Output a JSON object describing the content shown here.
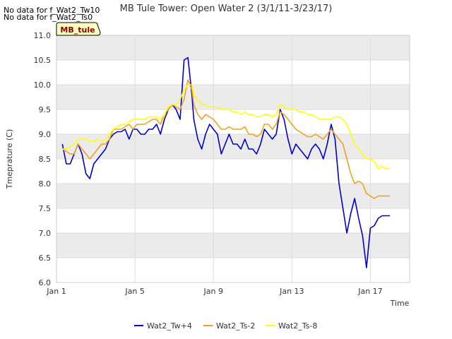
{
  "notes": [
    "No data for f_Wat2_Tw10",
    "No data for f_Wat2_Ts0"
  ],
  "chart_data": {
    "type": "line",
    "title": "MB Tule Tower: Open Water 2 (3/1/11-3/23/17)",
    "xlabel": "Time",
    "ylabel": "Tmeprature (C)",
    "xlim": [
      1,
      19
    ],
    "ylim": [
      6.0,
      11.0
    ],
    "xticks": [
      {
        "value": 1,
        "label": "Jan 1"
      },
      {
        "value": 5,
        "label": "Jan 5"
      },
      {
        "value": 9,
        "label": "Jan 9"
      },
      {
        "value": 13,
        "label": "Jan 13"
      },
      {
        "value": 17,
        "label": "Jan 17"
      }
    ],
    "yticks": [
      6.0,
      6.5,
      7.0,
      7.5,
      8.0,
      8.5,
      9.0,
      9.5,
      10.0,
      10.5,
      11.0
    ],
    "annotation": "MB_tule",
    "colors": {
      "band": "#ebebeb",
      "tag_bg": "#ffffc0",
      "tag_text": "#8b0000"
    },
    "series": [
      {
        "name": "Wat2_Tw+4",
        "color": "#0000cc",
        "x": [
          1.3,
          1.5,
          1.7,
          1.9,
          2.1,
          2.3,
          2.5,
          2.7,
          2.9,
          3.1,
          3.3,
          3.5,
          3.7,
          3.9,
          4.1,
          4.3,
          4.5,
          4.7,
          4.9,
          5.1,
          5.3,
          5.5,
          5.7,
          5.9,
          6.1,
          6.3,
          6.5,
          6.7,
          6.9,
          7.1,
          7.3,
          7.5,
          7.7,
          7.9,
          8.0,
          8.2,
          8.4,
          8.6,
          8.8,
          9.0,
          9.2,
          9.4,
          9.6,
          9.8,
          10.0,
          10.2,
          10.4,
          10.6,
          10.8,
          11.0,
          11.2,
          11.4,
          11.6,
          11.8,
          12.0,
          12.2,
          12.4,
          12.6,
          12.8,
          13.0,
          13.2,
          13.4,
          13.6,
          13.8,
          14.0,
          14.2,
          14.4,
          14.6,
          14.8,
          15.0,
          15.2,
          15.4,
          15.6,
          15.8,
          16.0,
          16.2,
          16.4,
          16.6,
          16.8,
          17.0,
          17.2,
          17.4,
          17.6,
          17.8,
          18.0
        ],
        "y": [
          8.8,
          8.4,
          8.4,
          8.6,
          8.8,
          8.6,
          8.2,
          8.1,
          8.4,
          8.5,
          8.6,
          8.7,
          8.9,
          9.0,
          9.05,
          9.05,
          9.1,
          8.9,
          9.1,
          9.1,
          9.0,
          9.0,
          9.1,
          9.1,
          9.2,
          9.0,
          9.3,
          9.5,
          9.6,
          9.5,
          9.3,
          10.5,
          10.55,
          9.8,
          9.3,
          8.9,
          8.7,
          9.0,
          9.2,
          9.1,
          9.0,
          8.6,
          8.8,
          9.0,
          8.8,
          8.8,
          8.7,
          8.9,
          8.7,
          8.7,
          8.6,
          8.8,
          9.1,
          9.0,
          8.9,
          9.0,
          9.5,
          9.3,
          8.9,
          8.6,
          8.8,
          8.7,
          8.6,
          8.5,
          8.7,
          8.8,
          8.7,
          8.5,
          8.8,
          9.2,
          8.9,
          8.0,
          7.5,
          7.0,
          7.4,
          7.7,
          7.3,
          6.95,
          6.3,
          7.1,
          7.15,
          7.3,
          7.35,
          7.35,
          7.35
        ]
      },
      {
        "name": "Wat2_Ts-2",
        "color": "#f0a020",
        "x": [
          1.3,
          1.5,
          1.7,
          1.9,
          2.1,
          2.3,
          2.5,
          2.7,
          2.9,
          3.1,
          3.3,
          3.5,
          3.7,
          3.9,
          4.1,
          4.3,
          4.5,
          4.7,
          4.9,
          5.1,
          5.3,
          5.5,
          5.7,
          5.9,
          6.1,
          6.3,
          6.5,
          6.7,
          6.9,
          7.1,
          7.3,
          7.5,
          7.7,
          7.9,
          8.0,
          8.2,
          8.4,
          8.6,
          8.8,
          9.0,
          9.2,
          9.4,
          9.6,
          9.8,
          10.0,
          10.2,
          10.4,
          10.6,
          10.8,
          11.0,
          11.2,
          11.4,
          11.6,
          11.8,
          12.0,
          12.2,
          12.4,
          12.6,
          12.8,
          13.0,
          13.2,
          13.4,
          13.6,
          13.8,
          14.0,
          14.2,
          14.4,
          14.6,
          14.8,
          15.0,
          15.2,
          15.4,
          15.6,
          15.8,
          16.0,
          16.2,
          16.4,
          16.6,
          16.8,
          17.0,
          17.2,
          17.4,
          17.6,
          17.8,
          18.0
        ],
        "y": [
          8.7,
          8.65,
          8.6,
          8.6,
          8.8,
          8.7,
          8.6,
          8.5,
          8.6,
          8.7,
          8.8,
          8.8,
          8.9,
          9.1,
          9.1,
          9.1,
          9.15,
          9.2,
          9.1,
          9.2,
          9.2,
          9.2,
          9.25,
          9.3,
          9.3,
          9.2,
          9.4,
          9.5,
          9.6,
          9.55,
          9.5,
          9.7,
          10.1,
          9.9,
          9.6,
          9.4,
          9.3,
          9.4,
          9.35,
          9.3,
          9.2,
          9.1,
          9.1,
          9.15,
          9.1,
          9.1,
          9.1,
          9.15,
          9.0,
          9.0,
          8.95,
          9.0,
          9.2,
          9.2,
          9.1,
          9.2,
          9.45,
          9.4,
          9.3,
          9.2,
          9.1,
          9.05,
          9.0,
          8.95,
          8.95,
          9.0,
          8.95,
          8.9,
          9.0,
          9.1,
          9.0,
          8.9,
          8.8,
          8.5,
          8.2,
          8.0,
          8.05,
          8.0,
          7.8,
          7.75,
          7.7,
          7.75,
          7.75,
          7.75,
          7.75
        ]
      },
      {
        "name": "Wat2_Ts-8",
        "color": "#ffff00",
        "x": [
          1.3,
          1.5,
          1.7,
          1.9,
          2.1,
          2.3,
          2.5,
          2.7,
          2.9,
          3.1,
          3.3,
          3.5,
          3.7,
          3.9,
          4.1,
          4.3,
          4.5,
          4.7,
          4.9,
          5.1,
          5.3,
          5.5,
          5.7,
          5.9,
          6.1,
          6.3,
          6.5,
          6.7,
          6.9,
          7.1,
          7.3,
          7.5,
          7.7,
          7.9,
          8.0,
          8.2,
          8.4,
          8.6,
          8.8,
          9.0,
          9.2,
          9.4,
          9.6,
          9.8,
          10.0,
          10.2,
          10.4,
          10.6,
          10.8,
          11.0,
          11.2,
          11.4,
          11.6,
          11.8,
          12.0,
          12.2,
          12.4,
          12.6,
          12.8,
          13.0,
          13.2,
          13.4,
          13.6,
          13.8,
          14.0,
          14.2,
          14.4,
          14.6,
          14.8,
          15.0,
          15.2,
          15.4,
          15.6,
          15.8,
          16.0,
          16.2,
          16.4,
          16.6,
          16.8,
          17.0,
          17.2,
          17.4,
          17.6,
          17.8,
          18.0
        ],
        "y": [
          8.7,
          8.7,
          8.75,
          8.8,
          8.9,
          8.9,
          8.9,
          8.85,
          8.85,
          8.9,
          8.85,
          8.9,
          9.0,
          9.1,
          9.15,
          9.2,
          9.2,
          9.25,
          9.3,
          9.3,
          9.3,
          9.3,
          9.35,
          9.35,
          9.35,
          9.3,
          9.4,
          9.55,
          9.6,
          9.6,
          9.7,
          9.9,
          10.0,
          10.0,
          9.8,
          9.7,
          9.6,
          9.6,
          9.55,
          9.55,
          9.55,
          9.5,
          9.5,
          9.5,
          9.45,
          9.45,
          9.4,
          9.45,
          9.4,
          9.4,
          9.35,
          9.35,
          9.4,
          9.4,
          9.35,
          9.4,
          9.6,
          9.55,
          9.5,
          9.5,
          9.5,
          9.45,
          9.45,
          9.4,
          9.4,
          9.35,
          9.3,
          9.3,
          9.3,
          9.3,
          9.35,
          9.35,
          9.3,
          9.2,
          9.0,
          8.8,
          8.7,
          8.6,
          8.5,
          8.5,
          8.45,
          8.3,
          8.35,
          8.3,
          8.3
        ]
      }
    ]
  }
}
